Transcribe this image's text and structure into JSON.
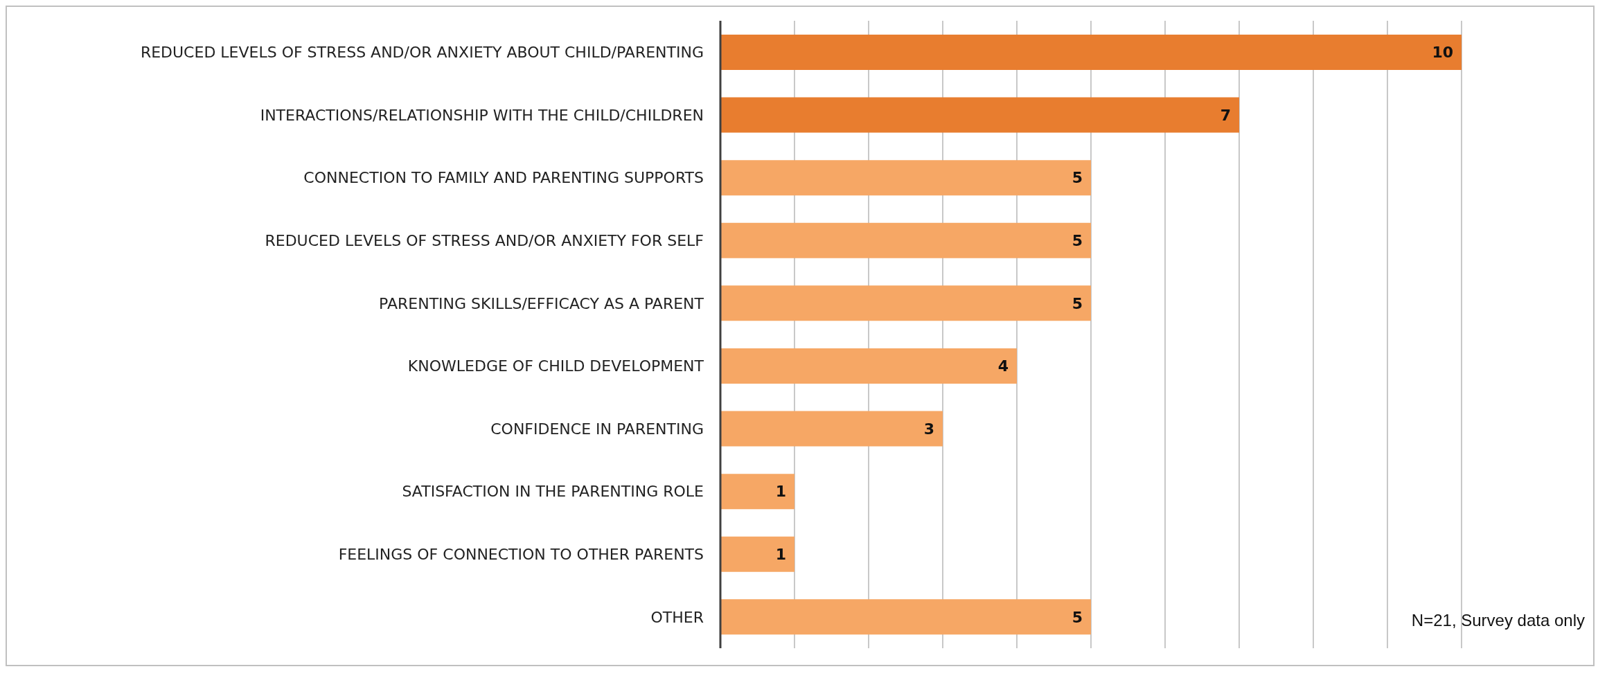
{
  "chart_data": {
    "type": "bar",
    "orientation": "horizontal",
    "categories": [
      "REDUCED LEVELS OF STRESS AND/OR ANXIETY ABOUT CHILD/PARENTING",
      "INTERACTIONS/RELATIONSHIP WITH THE CHILD/CHILDREN",
      "CONNECTION TO FAMILY AND PARENTING SUPPORTS",
      "REDUCED LEVELS OF STRESS AND/OR ANXIETY FOR SELF",
      "PARENTING SKILLS/EFFICACY AS A PARENT",
      "KNOWLEDGE OF CHILD DEVELOPMENT",
      "CONFIDENCE IN PARENTING",
      "SATISFACTION IN THE PARENTING ROLE",
      "FEELINGS OF CONNECTION TO OTHER PARENTS",
      "OTHER"
    ],
    "values": [
      10,
      7,
      5,
      5,
      5,
      4,
      3,
      1,
      1,
      5
    ],
    "colors": [
      "#e87d2f",
      "#e87d2f",
      "#f6a765",
      "#f6a765",
      "#f6a765",
      "#f6a765",
      "#f6a765",
      "#f6a765",
      "#f6a765",
      "#f6a765"
    ],
    "xlim": [
      0,
      10
    ],
    "xticks": [
      {
        "value": 0,
        "label": null
      },
      {
        "value": 1,
        "label": null
      },
      {
        "value": 2,
        "label": null
      },
      {
        "value": 3,
        "label": null
      },
      {
        "value": 4,
        "label": null
      },
      {
        "value": 5,
        "label": null
      },
      {
        "value": 6,
        "label": null
      },
      {
        "value": 7,
        "label": null
      },
      {
        "value": 8,
        "label": null
      },
      {
        "value": 9,
        "label": null
      },
      {
        "value": 10,
        "label": null
      }
    ],
    "tick_labels": "y",
    "grid": "x",
    "data_labels": true,
    "legend": false,
    "annotations": [
      "N=21, Survey data only"
    ]
  }
}
